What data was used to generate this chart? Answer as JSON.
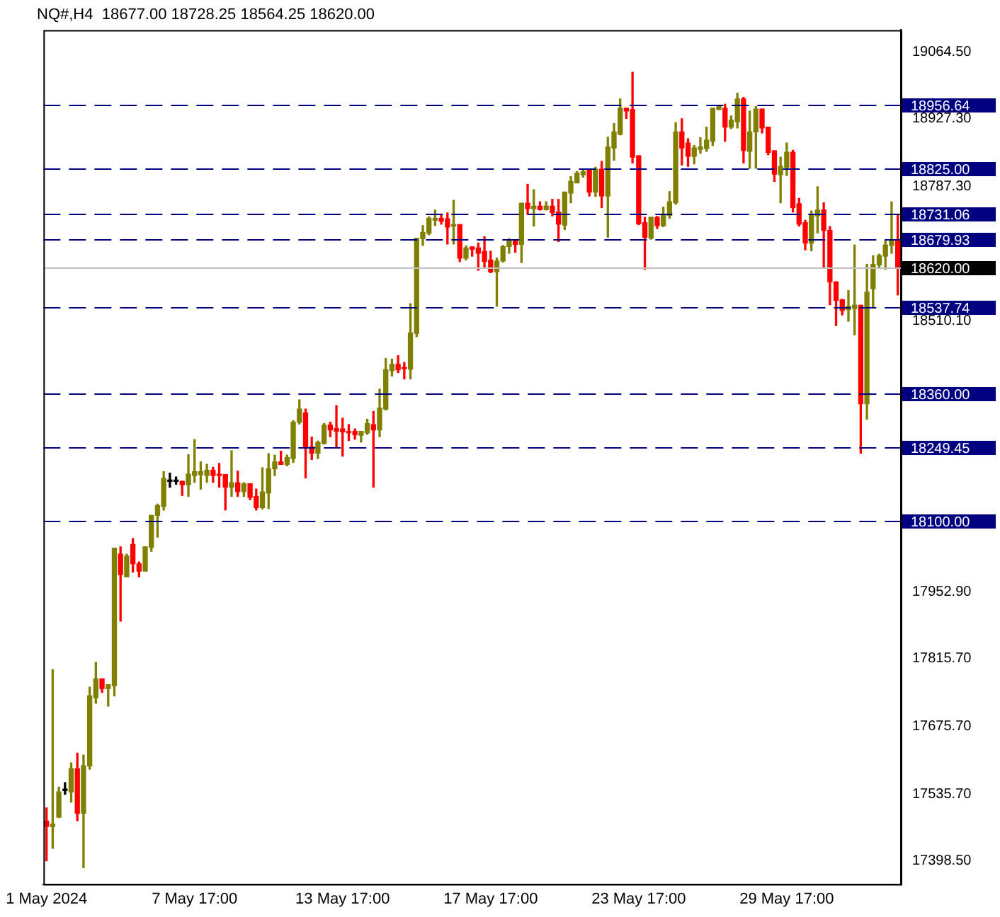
{
  "chart_data": {
    "type": "candlestick",
    "title": "NQ#,H4  18677.00 18728.25 18564.25 18620.00",
    "categories": [
      "1 May 2024",
      null,
      null,
      null,
      null,
      null,
      null,
      null,
      null,
      null,
      null,
      null,
      null,
      null,
      null,
      null,
      null,
      null,
      null,
      null,
      null,
      null,
      null,
      null,
      "7 May 17:00",
      null,
      null,
      null,
      null,
      null,
      null,
      null,
      null,
      null,
      null,
      null,
      null,
      null,
      null,
      null,
      null,
      null,
      null,
      null,
      null,
      null,
      null,
      null,
      "13 May 17:00",
      null,
      null,
      null,
      null,
      null,
      null,
      null,
      null,
      null,
      null,
      null,
      null,
      null,
      null,
      null,
      null,
      null,
      null,
      null,
      null,
      null,
      null,
      null,
      "17 May 17:00",
      null,
      null,
      null,
      null,
      null,
      null,
      null,
      null,
      null,
      null,
      null,
      null,
      null,
      null,
      null,
      null,
      null,
      null,
      null,
      null,
      null,
      null,
      null,
      "23 May 17:00",
      null,
      null,
      null,
      null,
      null,
      null,
      null,
      null,
      null,
      null,
      null,
      null,
      null,
      null,
      null,
      null,
      null,
      null,
      null,
      null,
      null,
      null,
      null,
      "29 May 17:00",
      null,
      null,
      null,
      null,
      null,
      null,
      null,
      null,
      null,
      null,
      null,
      null,
      null,
      null,
      null,
      null,
      null,
      null
    ],
    "ohlc": [
      [
        17480,
        17507,
        17398,
        17469
      ],
      [
        17469,
        17792,
        17424,
        17474
      ],
      [
        17488,
        17550,
        17487,
        17540
      ],
      [
        17543,
        17559,
        17535,
        17543
      ],
      [
        17540,
        17600,
        17519,
        17588
      ],
      [
        17588,
        17620,
        17481,
        17496
      ],
      [
        17496,
        17616,
        17384,
        17594
      ],
      [
        17594,
        17756,
        17587,
        17738
      ],
      [
        17734,
        17807,
        17723,
        17773
      ],
      [
        17773,
        17773,
        17745,
        17753
      ],
      [
        17753,
        17761,
        17717,
        17761
      ],
      [
        17759,
        18042,
        17738,
        18042
      ],
      [
        18030,
        18045,
        17892,
        17988
      ],
      [
        17983,
        18030,
        17983,
        18026
      ],
      [
        18050,
        18062,
        17993,
        18010
      ],
      [
        18010,
        18014,
        17983,
        17995
      ],
      [
        17995,
        18045,
        17995,
        18045
      ],
      [
        18044,
        18110,
        18036,
        18110
      ],
      [
        18110,
        18133,
        18065,
        18130
      ],
      [
        18128,
        18200,
        18121,
        18186
      ],
      [
        18180,
        18197,
        18168,
        18180
      ],
      [
        18180,
        18189,
        18174,
        18180
      ],
      [
        18180,
        18180,
        18151,
        18173
      ],
      [
        18173,
        18235,
        18149,
        18195
      ],
      [
        18192,
        18266,
        18178,
        18200
      ],
      [
        18194,
        18220,
        18164,
        18200
      ],
      [
        18192,
        18215,
        18178,
        18203
      ],
      [
        18203,
        18209,
        18178,
        18192
      ],
      [
        18194,
        18217,
        18168,
        18192
      ],
      [
        18194,
        18194,
        18121,
        18168
      ],
      [
        18168,
        18243,
        18149,
        18177
      ],
      [
        18177,
        18201,
        18149,
        18159
      ],
      [
        18159,
        18177,
        18149,
        18175
      ],
      [
        18175,
        18175,
        18142,
        18147
      ],
      [
        18149,
        18164,
        18121,
        18126
      ],
      [
        18126,
        18208,
        18123,
        18158
      ],
      [
        18156,
        18237,
        18124,
        18206
      ],
      [
        18206,
        18234,
        18192,
        18220
      ],
      [
        18220,
        18242,
        18215,
        18215
      ],
      [
        18215,
        18234,
        18212,
        18229
      ],
      [
        18227,
        18305,
        18219,
        18302
      ],
      [
        18302,
        18348,
        18298,
        18329
      ],
      [
        18321,
        18329,
        18187,
        18249
      ],
      [
        18251,
        18271,
        18225,
        18238
      ],
      [
        18238,
        18263,
        18227,
        18260
      ],
      [
        18258,
        18299,
        18257,
        18296
      ],
      [
        18296,
        18302,
        18272,
        18286
      ],
      [
        18289,
        18336,
        18251,
        18283
      ],
      [
        18288,
        18310,
        18232,
        18282
      ],
      [
        18283,
        18297,
        18264,
        18280
      ],
      [
        18283,
        18288,
        18267,
        18276
      ],
      [
        18275,
        18283,
        18261,
        18283
      ],
      [
        18280,
        18308,
        18277,
        18299
      ],
      [
        18297,
        18324,
        18168,
        18286
      ],
      [
        18286,
        18370,
        18272,
        18331
      ],
      [
        18329,
        18433,
        18327,
        18410
      ],
      [
        18408,
        18432,
        18397,
        18421
      ],
      [
        18421,
        18439,
        18404,
        18410
      ],
      [
        18414,
        18425,
        18391,
        18412
      ],
      [
        18411,
        18546,
        18391,
        18486
      ],
      [
        18485,
        18681,
        18478,
        18681
      ],
      [
        18680,
        18707,
        18666,
        18693
      ],
      [
        18691,
        18725,
        18688,
        18722
      ],
      [
        18718,
        18739,
        18707,
        18722
      ],
      [
        18722,
        18730,
        18710,
        18716
      ],
      [
        18721,
        18733,
        18669,
        18704
      ],
      [
        18706,
        18759,
        18669,
        18709
      ],
      [
        18709,
        18709,
        18633,
        18640
      ],
      [
        18640,
        18665,
        18636,
        18661
      ],
      [
        18663,
        18663,
        18644,
        18658
      ],
      [
        18661,
        18671,
        18615,
        18650
      ],
      [
        18654,
        18684,
        18620,
        18633
      ],
      [
        18636,
        18654,
        18610,
        18612
      ],
      [
        18612,
        18640,
        18541,
        18634
      ],
      [
        18634,
        18666,
        18632,
        18664
      ],
      [
        18664,
        18680,
        18650,
        18675
      ],
      [
        18675,
        18675,
        18652,
        18668
      ],
      [
        18668,
        18753,
        18631,
        18753
      ],
      [
        18753,
        18792,
        18730,
        18742
      ],
      [
        18742,
        18781,
        18706,
        18747
      ],
      [
        18747,
        18756,
        18739,
        18740
      ],
      [
        18740,
        18756,
        18739,
        18747
      ],
      [
        18747,
        18761,
        18727,
        18734
      ],
      [
        18735,
        18761,
        18674,
        18710
      ],
      [
        18708,
        18776,
        18699,
        18776
      ],
      [
        18774,
        18808,
        18754,
        18798
      ],
      [
        18795,
        18818,
        18795,
        18815
      ],
      [
        18812,
        18821,
        18807,
        18818
      ],
      [
        18823,
        18823,
        18768,
        18776
      ],
      [
        18776,
        18827,
        18767,
        18823
      ],
      [
        18823,
        18839,
        18744,
        18768
      ],
      [
        18768,
        18889,
        18683,
        18869
      ],
      [
        18867,
        18917,
        18842,
        18900
      ],
      [
        18895,
        18968,
        18894,
        18949
      ],
      [
        18949,
        18949,
        18928,
        18943
      ],
      [
        18946,
        19023,
        18836,
        18848
      ],
      [
        18851,
        18851,
        18709,
        18711
      ],
      [
        18713,
        18724,
        18617,
        18683
      ],
      [
        18681,
        18724,
        18679,
        18724
      ],
      [
        18724,
        18726,
        18701,
        18707
      ],
      [
        18707,
        18745,
        18705,
        18730
      ],
      [
        18728,
        18777,
        18722,
        18756
      ],
      [
        18754,
        18919,
        18751,
        18900
      ],
      [
        18900,
        18927,
        18832,
        18867
      ],
      [
        18877,
        18886,
        18829,
        18850
      ],
      [
        18850,
        18872,
        18834,
        18867
      ],
      [
        18864,
        18888,
        18856,
        18869
      ],
      [
        18866,
        18910,
        18860,
        18883
      ],
      [
        18881,
        18949,
        18872,
        18949
      ],
      [
        18946,
        18952,
        18946,
        18952
      ],
      [
        18949,
        18957,
        18881,
        18910
      ],
      [
        18910,
        18933,
        18907,
        18924
      ],
      [
        18921,
        18980,
        18908,
        18968
      ],
      [
        18968,
        18971,
        18836,
        18862
      ],
      [
        18860,
        18943,
        18825,
        18900
      ],
      [
        18900,
        18952,
        18825,
        18947
      ],
      [
        18947,
        18947,
        18898,
        18908
      ],
      [
        18910,
        18910,
        18853,
        18858
      ],
      [
        18861,
        18861,
        18798,
        18813
      ],
      [
        18812,
        18848,
        18754,
        18829
      ],
      [
        18827,
        18877,
        18810,
        18858
      ],
      [
        18858,
        18862,
        18735,
        18744
      ],
      [
        18752,
        18763,
        18706,
        18710
      ],
      [
        18713,
        18718,
        18657,
        18671
      ],
      [
        18671,
        18737,
        18655,
        18730
      ],
      [
        18727,
        18787,
        18692,
        18739
      ],
      [
        18739,
        18754,
        18620,
        18697
      ],
      [
        18697,
        18705,
        18544,
        18591
      ],
      [
        18591,
        18591,
        18501,
        18553
      ],
      [
        18554,
        18555,
        18523,
        18532
      ],
      [
        18534,
        18573,
        18510,
        18541
      ],
      [
        18536,
        18667,
        18482,
        18543
      ],
      [
        18543,
        18543,
        18238,
        18340
      ],
      [
        18340,
        18627,
        18308,
        18570
      ],
      [
        18577,
        18645,
        18537,
        18627
      ],
      [
        18626,
        18648,
        18621,
        18645
      ],
      [
        18644,
        18676,
        18617,
        18667
      ],
      [
        18666,
        18756,
        18650,
        18678
      ],
      [
        18677,
        18728.25,
        18564.25,
        18620
      ]
    ],
    "colors": [
      "#ff0000",
      "#808000",
      "#808000",
      "#000000",
      "#808000",
      "#ff0000",
      "#808000",
      "#808000",
      "#808000",
      "#ff0000",
      "#808000",
      "#808000",
      "#ff0000",
      "#808000",
      "#ff0000",
      "#ff0000",
      "#808000",
      "#808000",
      "#808000",
      "#808000",
      "#000000",
      "#000000",
      "#ff0000",
      "#808000",
      "#808000",
      "#808000",
      "#808000",
      "#ff0000",
      "#ff0000",
      "#ff0000",
      "#808000",
      "#ff0000",
      "#808000",
      "#ff0000",
      "#ff0000",
      "#808000",
      "#808000",
      "#808000",
      "#ff0000",
      "#808000",
      "#808000",
      "#808000",
      "#ff0000",
      "#ff0000",
      "#808000",
      "#808000",
      "#ff0000",
      "#ff0000",
      "#ff0000",
      "#ff0000",
      "#ff0000",
      "#808000",
      "#808000",
      "#ff0000",
      "#808000",
      "#808000",
      "#808000",
      "#ff0000",
      "#ff0000",
      "#808000",
      "#808000",
      "#808000",
      "#808000",
      "#808000",
      "#ff0000",
      "#ff0000",
      "#808000",
      "#ff0000",
      "#808000",
      "#ff0000",
      "#ff0000",
      "#ff0000",
      "#ff0000",
      "#808000",
      "#808000",
      "#808000",
      "#ff0000",
      "#808000",
      "#ff0000",
      "#808000",
      "#ff0000",
      "#808000",
      "#ff0000",
      "#ff0000",
      "#808000",
      "#808000",
      "#808000",
      "#808000",
      "#ff0000",
      "#808000",
      "#ff0000",
      "#808000",
      "#808000",
      "#808000",
      "#ff0000",
      "#ff0000",
      "#ff0000",
      "#ff0000",
      "#808000",
      "#ff0000",
      "#808000",
      "#808000",
      "#808000",
      "#ff0000",
      "#ff0000",
      "#808000",
      "#808000",
      "#808000",
      "#808000",
      "#808000",
      "#ff0000",
      "#808000",
      "#808000",
      "#ff0000",
      "#808000",
      "#808000",
      "#ff0000",
      "#ff0000",
      "#ff0000",
      "#808000",
      "#808000",
      "#ff0000",
      "#ff0000",
      "#ff0000",
      "#808000",
      "#808000",
      "#ff0000",
      "#ff0000",
      "#ff0000",
      "#ff0000",
      "#808000",
      "#808000",
      "#ff0000",
      "#808000",
      "#808000",
      "#808000",
      "#808000",
      "#808000",
      "#ff0000"
    ],
    "ylim": [
      17350,
      19110
    ],
    "yticks": [
      {
        "value": 19064.5,
        "label": "19064.50"
      },
      {
        "value": 18927.3,
        "label": "18927.30"
      },
      {
        "value": 18787.3,
        "label": "18787.30"
      },
      {
        "value": 18510.1,
        "label": "18510.10"
      },
      {
        "value": 17952.9,
        "label": "17952.90"
      },
      {
        "value": 17815.7,
        "label": "17815.70"
      },
      {
        "value": 17675.7,
        "label": "17675.70"
      },
      {
        "value": 17535.7,
        "label": "17535.70"
      },
      {
        "value": 17398.5,
        "label": "17398.50"
      }
    ],
    "ref_lines": [
      {
        "axis": "y",
        "value": 18956.64,
        "label": "18956.64",
        "color": "#000080",
        "line_style": "dashed"
      },
      {
        "axis": "y",
        "value": 18825,
        "label": "18825.00",
        "color": "#000080",
        "line_style": "dashed"
      },
      {
        "axis": "y",
        "value": 18731.06,
        "label": "18731.06",
        "color": "#000080",
        "line_style": "dashed"
      },
      {
        "axis": "y",
        "value": 18679.93,
        "label": "18679.93",
        "color": "#000080",
        "line_style": "dashed"
      },
      {
        "axis": "y",
        "value": 18620,
        "label": "18620.00",
        "color": "#c0c0c0",
        "line_style": "solid"
      },
      {
        "axis": "y",
        "value": 18537.74,
        "label": "18537.74",
        "color": "#000080",
        "line_style": "dashed"
      },
      {
        "axis": "y",
        "value": 18360,
        "label": "18360.00",
        "color": "#000080",
        "line_style": "dashed"
      },
      {
        "axis": "y",
        "value": 18249.45,
        "label": "18249.45",
        "color": "#000080",
        "line_style": "dashed"
      },
      {
        "axis": "y",
        "value": 18100,
        "label": "18100.00",
        "color": "#000080",
        "line_style": "dashed"
      }
    ]
  }
}
